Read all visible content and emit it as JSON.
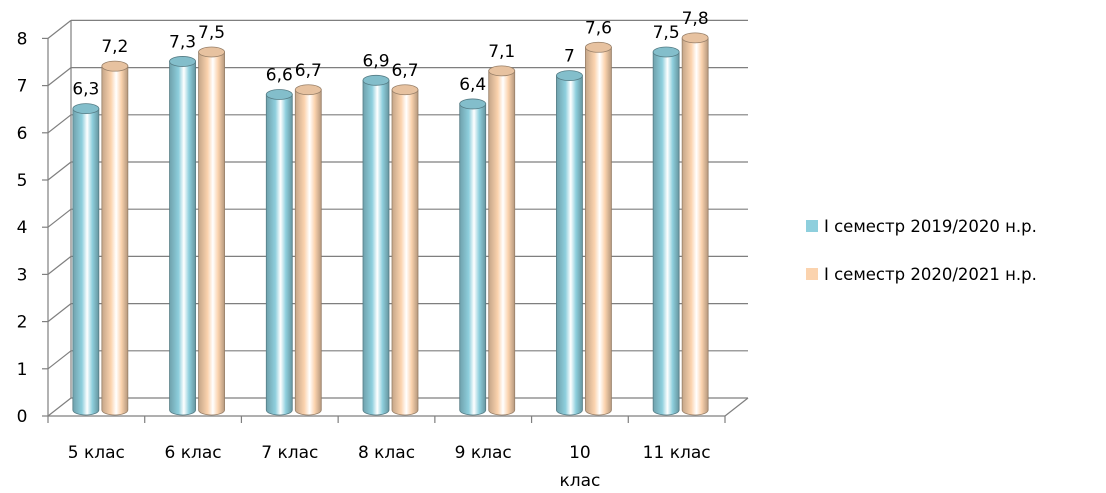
{
  "chart_data": {
    "type": "bar",
    "categories": [
      "5 клас",
      "6 клас",
      "7 клас",
      "8 клас",
      "9 клас",
      "10 клас",
      "11 клас"
    ],
    "series": [
      {
        "name": "I семестр 2019/2020 н.р.",
        "color": "#8ecfdd",
        "values": [
          6.3,
          7.3,
          6.6,
          6.9,
          6.4,
          7,
          7.5
        ],
        "labels": [
          "6,3",
          "7,3",
          "6,6",
          "6,9",
          "6,4",
          "7",
          "7,5"
        ]
      },
      {
        "name": "I семестр 2020/2021 н.р.",
        "color": "#fbd3ae",
        "values": [
          7.2,
          7.5,
          6.7,
          6.7,
          7.1,
          7.6,
          7.8
        ],
        "labels": [
          "7,2",
          "7,5",
          "6,7",
          "6,7",
          "7,1",
          "7,6",
          "7,8"
        ]
      }
    ],
    "yticks": [
      "0",
      "1",
      "2",
      "3",
      "4",
      "5",
      "6",
      "7",
      "8"
    ],
    "ylim": [
      0,
      8
    ],
    "grid": true,
    "legend_position": "right"
  }
}
